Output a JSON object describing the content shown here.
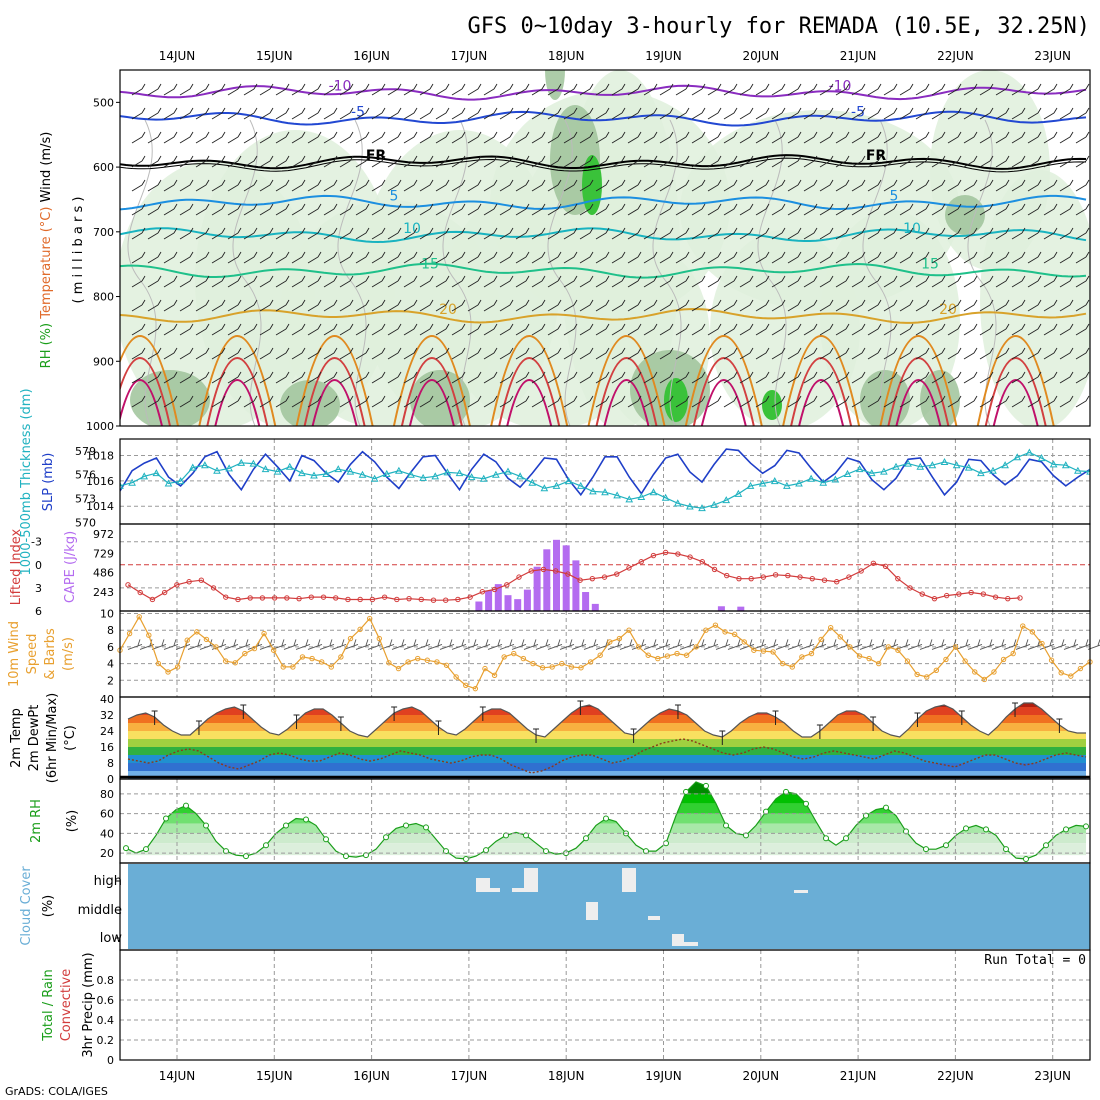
{
  "title": "GFS 0~10day 3-hourly for REMADA (10.5E, 32.25N)",
  "credit": "GrADS: COLA/IGES",
  "date_labels": [
    "14JUN",
    "15JUN",
    "16JUN",
    "17JUN",
    "18JUN",
    "19JUN",
    "20JUN",
    "21JUN",
    "22JUN",
    "23JUN"
  ],
  "run_total": "Run Total = 0",
  "colors": {
    "rh_fill": "#dff0dc",
    "rh_mid": "#9fc39a",
    "rh_high": "#3ac23a",
    "slp": "#1f3fc8",
    "thickness": "#20b2c0",
    "li": "#d23c3c",
    "cape": "#b46cf0",
    "wind": "#e8a030",
    "barb": "#555555",
    "cloud": "#6aaed6",
    "rh2m": "#1a9e1a"
  },
  "chart_data": [
    {
      "id": "upper",
      "type": "heatmap",
      "ylabel_parts": [
        "RH (%)",
        "Temperature (°C)",
        "Wind (m/s)"
      ],
      "ylabel2": "( m i l l i b a r s )",
      "yticks": [
        "500",
        "600",
        "700",
        "800",
        "900",
        "1000"
      ],
      "ylim": [
        450,
        1000
      ],
      "isotherms": [
        {
          "label": "-10",
          "level": 485,
          "color": "#8a2cc0"
        },
        {
          "label": "-5",
          "level": 525,
          "color": "#2248d2"
        },
        {
          "label": "FR",
          "level": 592,
          "color": "#000000"
        },
        {
          "label": "5",
          "level": 655,
          "color": "#1c8fe0"
        },
        {
          "label": "10",
          "level": 705,
          "color": "#18b3c0"
        },
        {
          "label": "15",
          "level": 760,
          "color": "#1fc08a"
        },
        {
          "label": "20",
          "level": 830,
          "color": "#d8a22a"
        }
      ]
    },
    {
      "id": "slp",
      "type": "line",
      "ylabel_parts": [
        "1000-500mb Thickness (dm)",
        "SLP (mb)"
      ],
      "left_ticks": [
        "579",
        "576",
        "573",
        "570"
      ],
      "right_ticks": [
        "1018",
        "1016",
        "1014"
      ],
      "series": [
        {
          "values": [
            1015.2,
            1016.8,
            1017.4,
            1017.8,
            1016.3,
            1015.6,
            1016.6,
            1017.9,
            1018.3,
            1016.5,
            1015.3,
            1016.9,
            1018.1,
            1017.1,
            1016.0,
            1018.0,
            1017.6,
            1016.6,
            1015.9,
            1017.3,
            1018.3,
            1017.5,
            1016.3,
            1015.4,
            1016.7,
            1017.9,
            1018.0,
            1016.6,
            1015.3,
            1016.9,
            1018.1,
            1017.5,
            1016.2,
            1015.5,
            1016.6,
            1017.8,
            1017.7,
            1016.1,
            1014.9,
            1016.3,
            1017.9,
            1017.9,
            1016.3,
            1015.0,
            1016.5,
            1017.8,
            1018.1,
            1016.7,
            1015.9,
            1017.3,
            1018.5,
            1018.4,
            1017.4,
            1016.6,
            1017.2,
            1018.4,
            1018.2,
            1017.0,
            1015.9,
            1016.6,
            1017.8,
            1017.5,
            1016.1,
            1015.3,
            1016.2,
            1017.7,
            1017.8,
            1016.3,
            1014.9,
            1015.9,
            1017.7,
            1017.6,
            1016.5,
            1015.7,
            1016.4,
            1017.7,
            1017.5,
            1016.4,
            1015.6,
            1016.3,
            1016.9
          ]
        }
      ],
      "thickness_dm": [
        574.6,
        575.0,
        575.8,
        576.2,
        574.9,
        575.2,
        576.9,
        577.2,
        576.5,
        576.8,
        577.5,
        577.4,
        576.7,
        576.4,
        577.0,
        576.2,
        575.9,
        576.1,
        576.7,
        576.4,
        576.0,
        575.5,
        576.1,
        576.5,
        576.0,
        575.6,
        575.8,
        576.3,
        576.2,
        575.7,
        575.5,
        576.0,
        576.4,
        575.8,
        575.0,
        574.3,
        574.6,
        575.2,
        574.6,
        573.9,
        573.8,
        573.4,
        572.9,
        573.2,
        573.8,
        573.1,
        572.4,
        572.0,
        571.8,
        572.2,
        572.8,
        573.6,
        574.6,
        574.9,
        575.2,
        574.6,
        574.9,
        575.5,
        575.0,
        575.4,
        576.1,
        576.7,
        576.2,
        576.4,
        577.0,
        577.4,
        577.0,
        577.2,
        577.6,
        577.2,
        576.9,
        576.2,
        576.5,
        577.2,
        578.2,
        578.8,
        578.1,
        577.3,
        577.2,
        576.5,
        576.4
      ]
    },
    {
      "id": "cape",
      "type": "bar",
      "ylabel_parts": [
        "Lifted Index",
        "CAPE (J/kg)"
      ],
      "left_ticks": [
        "-3",
        "0",
        "3",
        "6"
      ],
      "right_ticks": [
        "972",
        "729",
        "486",
        "243"
      ],
      "cape_bars": [
        {
          "i": 37,
          "v": 120
        },
        {
          "i": 38,
          "v": 260
        },
        {
          "i": 39,
          "v": 340
        },
        {
          "i": 40,
          "v": 200
        },
        {
          "i": 41,
          "v": 150
        },
        {
          "i": 42,
          "v": 270
        },
        {
          "i": 43,
          "v": 560
        },
        {
          "i": 44,
          "v": 780
        },
        {
          "i": 45,
          "v": 900
        },
        {
          "i": 46,
          "v": 830
        },
        {
          "i": 47,
          "v": 640
        },
        {
          "i": 48,
          "v": 240
        },
        {
          "i": 49,
          "v": 90
        },
        {
          "i": 62,
          "v": 60
        },
        {
          "i": 64,
          "v": 55
        }
      ],
      "lifted_index": [
        2.6,
        3.6,
        4.5,
        3.6,
        2.6,
        2.2,
        2.0,
        3.0,
        4.2,
        4.5,
        4.3,
        4.3,
        4.3,
        4.3,
        4.4,
        4.2,
        4.2,
        4.3,
        4.5,
        4.5,
        4.5,
        4.2,
        4.5,
        4.4,
        4.5,
        4.6,
        4.6,
        4.5,
        4.2,
        3.5,
        3.2,
        2.6,
        1.6,
        0.8,
        0.6,
        0.8,
        1.2,
        2.0,
        1.8,
        1.6,
        1.2,
        0.4,
        -0.4,
        -1.2,
        -1.6,
        -1.4,
        -1.0,
        -0.4,
        0.6,
        1.4,
        1.8,
        1.8,
        1.6,
        1.3,
        1.4,
        1.6,
        1.8,
        2.0,
        2.2,
        1.6,
        0.8,
        -0.2,
        0.2,
        1.8,
        3.0,
        3.8,
        4.4,
        4.0,
        3.8,
        3.6,
        3.8,
        4.2,
        4.4,
        4.3
      ]
    },
    {
      "id": "wind10m",
      "type": "line",
      "ylabel_parts": [
        "10m Wind",
        "Speed",
        "& Barbs",
        "(m/s)"
      ],
      "yticks": [
        "10",
        "8",
        "6",
        "4",
        "2"
      ],
      "ylim": [
        0,
        10
      ],
      "series": [
        {
          "values": [
            5.6,
            7.6,
            9.6,
            7.4,
            4.0,
            3.0,
            3.6,
            6.8,
            7.8,
            6.9,
            6.0,
            4.3,
            4.1,
            5.2,
            5.8,
            7.6,
            5.6,
            3.6,
            3.6,
            4.8,
            4.6,
            4.2,
            3.6,
            4.8,
            7.0,
            8.1,
            9.4,
            7.0,
            4.1,
            3.4,
            4.2,
            4.6,
            4.4,
            4.2,
            3.8,
            2.4,
            1.4,
            1.0,
            3.4,
            2.6,
            4.8,
            5.2,
            4.6,
            4.0,
            3.5,
            3.6,
            4.0,
            3.6,
            3.5,
            4.2,
            5.0,
            6.6,
            7.0,
            8.0,
            6.0,
            5.0,
            4.6,
            4.9,
            5.2,
            5.0,
            6.0,
            8.0,
            8.6,
            7.8,
            7.5,
            6.6,
            5.6,
            5.5,
            5.4,
            4.0,
            3.6,
            4.8,
            5.2,
            6.9,
            8.3,
            7.2,
            6.0,
            4.9,
            4.6,
            4.0,
            6.0,
            5.6,
            4.3,
            2.7,
            2.4,
            3.2,
            4.5,
            6.0,
            4.3,
            3.0,
            2.1,
            3.0,
            4.5,
            5.2,
            8.5,
            7.8,
            6.4,
            4.4,
            2.9,
            2.5,
            3.4,
            4.2
          ]
        }
      ]
    },
    {
      "id": "temp2m",
      "type": "area",
      "ylabel_parts": [
        "2m Temp",
        "2m DewPt",
        "(6hr Min/Max)",
        "(°C)"
      ],
      "yticks": [
        "40",
        "32",
        "24",
        "16",
        "8",
        "0"
      ],
      "ylim": [
        0,
        40
      ],
      "series": [
        {
          "values": [
            30,
            32,
            33,
            31,
            27,
            24,
            22,
            22,
            26,
            30,
            33,
            35,
            36,
            34,
            30,
            26,
            23,
            22,
            25,
            29,
            33,
            35,
            35,
            32,
            28,
            24,
            22,
            21,
            25,
            29,
            33,
            35,
            36,
            34,
            30,
            26,
            23,
            22,
            25,
            29,
            33,
            35,
            35,
            33,
            29,
            25,
            22,
            21,
            25,
            29,
            33,
            36,
            37,
            35,
            31,
            27,
            23,
            22,
            26,
            30,
            33,
            35,
            34,
            32,
            28,
            24,
            22,
            21,
            24,
            28,
            31,
            33,
            33,
            31,
            28,
            24,
            21,
            21,
            24,
            28,
            32,
            34,
            34,
            32,
            28,
            24,
            22,
            21,
            25,
            30,
            34,
            36,
            37,
            35,
            31,
            27,
            24,
            22,
            26,
            31,
            35,
            38,
            38,
            35,
            31,
            27,
            24,
            23,
            23
          ]
        },
        {
          "values": [
            10,
            9,
            8,
            9,
            12,
            14,
            15,
            14,
            11,
            8,
            6,
            5,
            7,
            9,
            12,
            13,
            12,
            10,
            9,
            9,
            11,
            13,
            12,
            10,
            9,
            10,
            12,
            14,
            13,
            12,
            10,
            9,
            8,
            9,
            11,
            12,
            12,
            10,
            7,
            5,
            3,
            4,
            6,
            9,
            11,
            12,
            12,
            10,
            8,
            9,
            11,
            14,
            16,
            18,
            19,
            20,
            19,
            17,
            15,
            13,
            12,
            13,
            15,
            16,
            15,
            13,
            11,
            10,
            11,
            13,
            14,
            13,
            12,
            11,
            10,
            12,
            14,
            13,
            11,
            9,
            8,
            7,
            6,
            8,
            10,
            12,
            12,
            10,
            8,
            7,
            8,
            10,
            12,
            13,
            12,
            11
          ]
        }
      ]
    },
    {
      "id": "rh2m",
      "type": "area",
      "ylabel_parts": [
        "2m RH",
        "(%)"
      ],
      "yticks": [
        "80",
        "60",
        "40",
        "20"
      ],
      "ylim": [
        10,
        95
      ],
      "series": [
        {
          "values": [
            25,
            20,
            24,
            38,
            55,
            64,
            68,
            60,
            48,
            32,
            22,
            18,
            17,
            20,
            28,
            40,
            48,
            55,
            54,
            48,
            34,
            22,
            17,
            16,
            18,
            24,
            36,
            45,
            48,
            50,
            46,
            34,
            22,
            15,
            14,
            17,
            23,
            32,
            38,
            41,
            38,
            30,
            22,
            19,
            20,
            25,
            35,
            48,
            55,
            52,
            40,
            28,
            22,
            22,
            30,
            58,
            82,
            92,
            88,
            70,
            48,
            40,
            38,
            48,
            62,
            75,
            82,
            80,
            70,
            52,
            35,
            28,
            35,
            48,
            58,
            64,
            66,
            58,
            42,
            30,
            24,
            24,
            28,
            38,
            45,
            48,
            44,
            38,
            24,
            15,
            14,
            18,
            28,
            38,
            44,
            48,
            47
          ]
        }
      ]
    },
    {
      "id": "cloud",
      "type": "bar",
      "ylabel_parts": [
        "Cloud Cover",
        "(%)"
      ],
      "yticks": [
        "high",
        "middle",
        "low"
      ]
    },
    {
      "id": "precip",
      "type": "bar",
      "ylabel_parts": [
        "3hr Precip (mm)",
        "Total / Rain",
        "Convective"
      ],
      "yticks": [
        "0.8",
        "0.6",
        "0.4",
        "0.2",
        "0"
      ],
      "ylim": [
        0,
        1
      ],
      "values": []
    }
  ]
}
